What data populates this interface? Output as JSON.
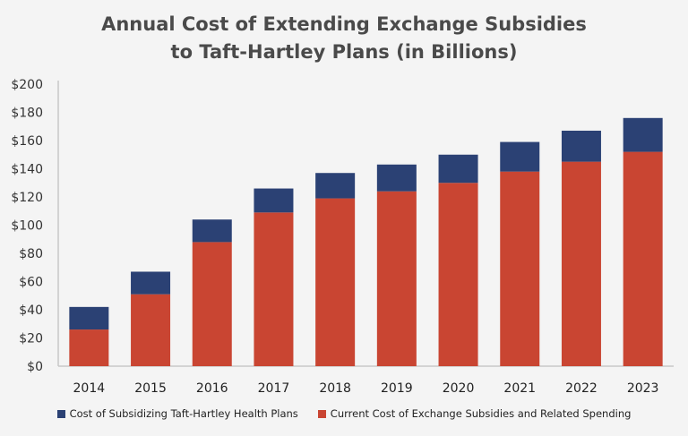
{
  "chart_data": {
    "type": "bar",
    "stacked": true,
    "title_lines": [
      "Annual Cost of Extending Exchange Subsidies",
      "to Taft-Hartley Plans (in Billions)"
    ],
    "xlabel": "",
    "ylabel": "",
    "categories": [
      "2014",
      "2015",
      "2016",
      "2017",
      "2018",
      "2019",
      "2020",
      "2021",
      "2022",
      "2023"
    ],
    "ylim": [
      0,
      200
    ],
    "yticks": [
      "$0",
      "$20",
      "$40",
      "$60",
      "$80",
      "$100",
      "$120",
      "$140",
      "$160",
      "$180",
      "$200"
    ],
    "grid": false,
    "legend_position": "bottom",
    "series": [
      {
        "name": "Current Cost of Exchange Subsidies and Related Spending",
        "color": "#c94532",
        "values": [
          26,
          51,
          88,
          109,
          119,
          124,
          130,
          138,
          145,
          152
        ]
      },
      {
        "name": "Cost of Subsidizing Taft-Hartley Health Plans",
        "color": "#2b4174",
        "values": [
          16,
          16,
          16,
          17,
          18,
          19,
          20,
          21,
          22,
          24
        ]
      }
    ]
  }
}
